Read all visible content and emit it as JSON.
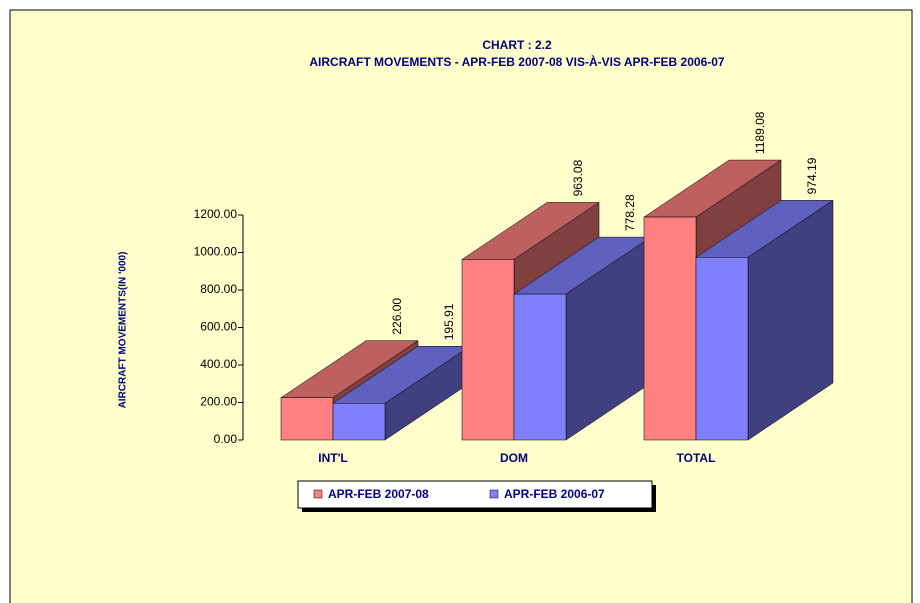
{
  "chart_data": {
    "type": "bar3d",
    "title": "CHART : 2.2",
    "subtitle": "AIRCRAFT MOVEMENTS - APR-FEB  2007-08 VIS-À-VIS APR-FEB 2006-07",
    "y_label": "AIRCRAFT MOVEMENTS(IN '000)",
    "categories": [
      "INT'L",
      "DOM",
      "TOTAL"
    ],
    "series": [
      {
        "name": "APR-FEB 2007-08",
        "color": "#ff8080",
        "values": [
          226.0,
          963.08,
          1189.08
        ],
        "value_labels": [
          "226.00",
          "963.08",
          "1189.08"
        ]
      },
      {
        "name": "APR-FEB 2006-07",
        "color": "#8080ff",
        "values": [
          195.91,
          778.28,
          974.19
        ],
        "value_labels": [
          "195.91",
          "778.28",
          "974.19"
        ]
      }
    ],
    "ylim": [
      0,
      1200
    ],
    "yticks": [
      {
        "value": 0,
        "label": "0.00"
      },
      {
        "value": 200,
        "label": "200.00"
      },
      {
        "value": 400,
        "label": "400.00"
      },
      {
        "value": 600,
        "label": "600.00"
      },
      {
        "value": 800,
        "label": "800.00"
      },
      {
        "value": 1000,
        "label": "1000.00"
      },
      {
        "value": 1200,
        "label": "1200.00"
      }
    ],
    "legend": "bottom"
  }
}
